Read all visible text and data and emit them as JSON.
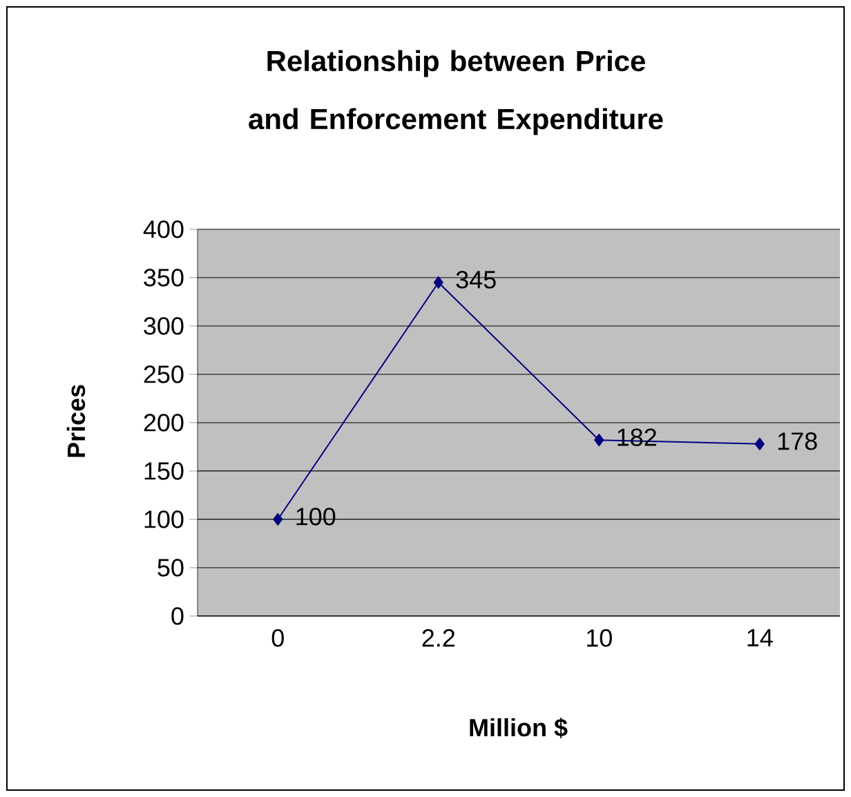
{
  "chart_data": {
    "type": "line",
    "title": "Relationship between Price and Enforcement Expenditure",
    "xlabel": "Million $",
    "ylabel": "Prices",
    "categories": [
      "0",
      "2.2",
      "10",
      "14"
    ],
    "series": [
      {
        "color": "#000080",
        "values": [
          100,
          345,
          182,
          178
        ]
      }
    ],
    "ylim": [
      0,
      400
    ],
    "yticks": [
      0,
      50,
      100,
      150,
      200,
      250,
      300,
      350,
      400
    ],
    "grid": "y",
    "marker": "diamond",
    "line_style": "solid",
    "data_labels": true
  }
}
